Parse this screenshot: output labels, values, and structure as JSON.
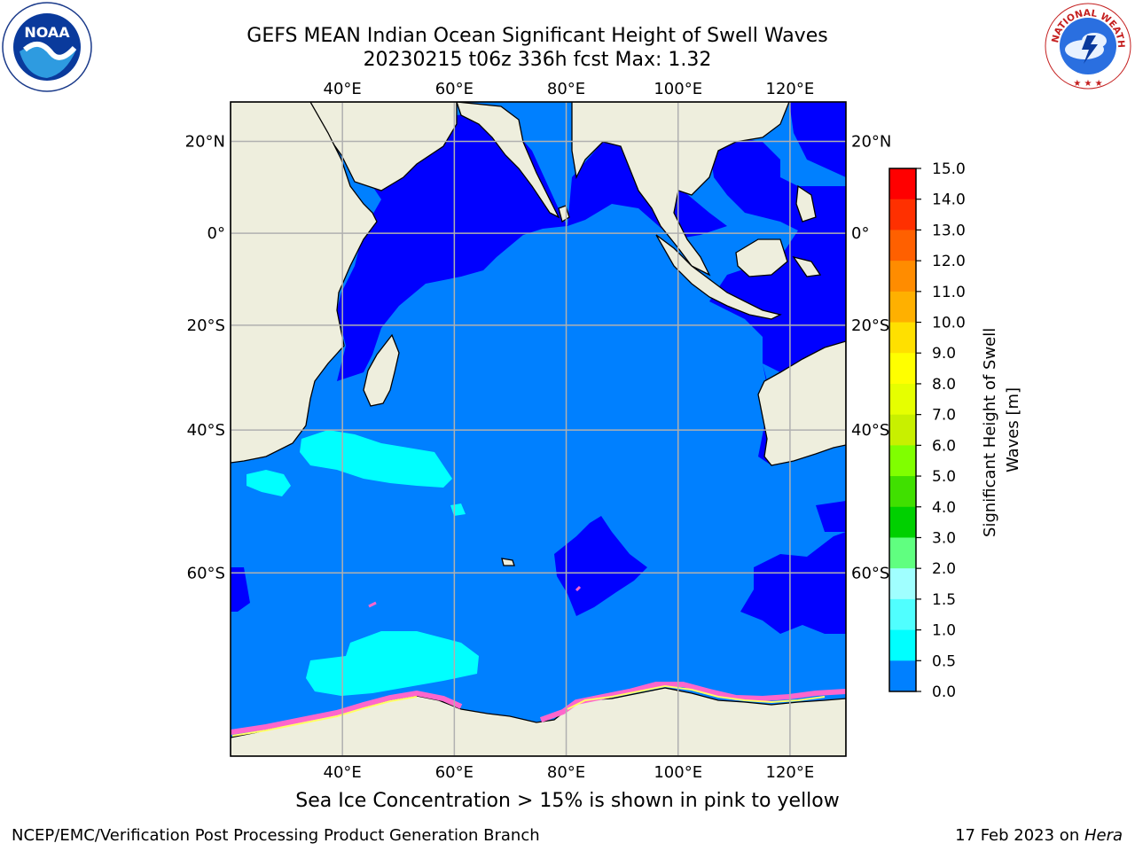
{
  "header": {
    "title_line1": "GEFS MEAN Indian Ocean Significant Height of Swell Waves",
    "title_line2": "20230215 t06z 336h fcst   Max: 1.32"
  },
  "logos": {
    "left": {
      "name": "noaa-logo",
      "text": "NOAA",
      "ring_text": "NATIONAL OCEANIC AND ATMOSPHERIC ADMINISTRATION · U.S. DEPARTMENT OF COMMERCE"
    },
    "right": {
      "name": "nws-logo",
      "ring_text": "NATIONAL WEATHER SERVICE"
    }
  },
  "map": {
    "lon_ticks": [
      "40°E",
      "60°E",
      "80°E",
      "100°E",
      "120°E"
    ],
    "lat_ticks": [
      "20°N",
      "0°",
      "20°S",
      "40°S",
      "60°S"
    ],
    "lon_values": [
      40,
      60,
      80,
      100,
      120
    ],
    "lat_values": [
      20,
      0,
      -20,
      -40,
      -60
    ],
    "extent": {
      "lon_min": 20,
      "lon_max": 130,
      "lat_min": -75,
      "lat_max": 28
    },
    "colors": {
      "land": "#eeeedd",
      "ocean_low": "#0000ff",
      "ocean_mid": "#0080ff",
      "swell_high": "#00ffff",
      "ice": "#ff66cc",
      "ice_edge": "#ffff66",
      "grid": "#b0b0b0"
    }
  },
  "colorbar": {
    "label": "Significant Height of Swell Waves [m]",
    "ticks": [
      "15.0",
      "14.0",
      "13.0",
      "12.0",
      "11.0",
      "10.0",
      "9.0",
      "8.0",
      "7.0",
      "6.0",
      "5.0",
      "4.0",
      "3.0",
      "2.0",
      "1.5",
      "1.0",
      "0.5",
      "0.0"
    ],
    "colors": [
      "#ff0000",
      "#ff3000",
      "#ff6000",
      "#ff8c00",
      "#ffb000",
      "#ffe000",
      "#ffff00",
      "#e6ff00",
      "#c8f000",
      "#80ff00",
      "#40e000",
      "#00d000",
      "#60ff80",
      "#a0ffff",
      "#50ffff",
      "#00ffff",
      "#0080ff",
      "#0000ff"
    ]
  },
  "footer": {
    "note": "Sea Ice Concentration > 15% is shown in pink to yellow",
    "credit": "NCEP/EMC/Verification Post Processing Product Generation Branch",
    "stamp_prefix": "17 Feb 2023 on ",
    "stamp_host": "Hera"
  }
}
